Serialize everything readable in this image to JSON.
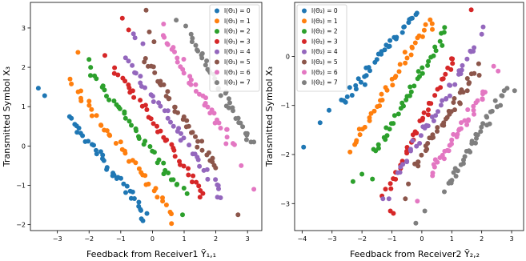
{
  "colors": [
    "#1f77b4",
    "#ff7f0e",
    "#2ca02c",
    "#d62728",
    "#9467bd",
    "#8c564b",
    "#e377c2",
    "#7f7f7f"
  ],
  "chart_data": [
    {
      "type": "scatter",
      "xlabel": "Feedback from Receiver1 Ỹ₁,₁",
      "ylabel": "Transmitted Symbol X₃",
      "xlim": [
        -3.85,
        3.45
      ],
      "ylim": [
        -2.15,
        3.65
      ],
      "xticks": [
        -3,
        -2,
        -1,
        0,
        1,
        2,
        3
      ],
      "yticks": [
        -2,
        -1,
        0,
        1,
        2,
        3
      ],
      "legend_position": "top-right",
      "legend": [
        "l(Θ₁) = 0",
        "l(Θ₁) = 1",
        "l(Θ₁) = 2",
        "l(Θ₁) = 3",
        "l(Θ₁) = 4",
        "l(Θ₁) = 5",
        "l(Θ₁) = 6",
        "l(Θ₁) = 7"
      ],
      "series": [
        {
          "name": "l(Θ₁) = 0",
          "band_start": [
            -2.6,
            0.7
          ],
          "band_end": [
            -0.2,
            -1.7
          ],
          "extras": [
            [
              -3.6,
              1.47
            ],
            [
              -3.4,
              1.28
            ],
            [
              -0.35,
              -1.85
            ],
            [
              -0.3,
              -1.9
            ]
          ]
        },
        {
          "name": "l(Θ₁) = 1",
          "band_start": [
            -2.5,
            1.5
          ],
          "band_end": [
            0.6,
            -1.7
          ],
          "extras": [
            [
              -2.35,
              2.38
            ],
            [
              0.6,
              -1.97
            ],
            [
              -2.6,
              1.7
            ]
          ]
        },
        {
          "name": "l(Θ₁) = 2",
          "band_start": [
            -1.9,
            1.8
          ],
          "band_end": [
            1.0,
            -1.2
          ],
          "extras": [
            [
              -2.0,
              2.2
            ],
            [
              0.95,
              -1.75
            ],
            [
              -1.95,
              2.0
            ]
          ]
        },
        {
          "name": "l(Θ₁) = 3",
          "band_start": [
            -1.2,
            2.0
          ],
          "band_end": [
            1.6,
            -1.2
          ],
          "extras": [
            [
              -0.95,
              3.25
            ],
            [
              -0.75,
              2.95
            ],
            [
              -1.5,
              2.3
            ],
            [
              1.5,
              -1.3
            ]
          ]
        },
        {
          "name": "l(Θ₁) = 4",
          "band_start": [
            -0.8,
            2.2
          ],
          "band_end": [
            2.2,
            -1.2
          ],
          "extras": [
            [
              -0.6,
              2.85
            ],
            [
              -0.55,
              2.75
            ],
            [
              -0.3,
              2.6
            ],
            [
              2.05,
              -1.3
            ]
          ]
        },
        {
          "name": "l(Θ₁) = 5",
          "band_start": [
            -0.25,
            2.2
          ],
          "band_end": [
            2.0,
            -0.6
          ],
          "extras": [
            [
              -0.2,
              3.45
            ],
            [
              -0.1,
              2.9
            ],
            [
              0.05,
              2.65
            ],
            [
              2.7,
              -1.75
            ]
          ]
        },
        {
          "name": "l(Θ₁) = 6",
          "band_start": [
            0.35,
            2.8
          ],
          "band_end": [
            2.55,
            0.0
          ],
          "extras": [
            [
              0.35,
              3.1
            ],
            [
              2.8,
              -0.5
            ],
            [
              3.2,
              -1.1
            ]
          ]
        },
        {
          "name": "l(Θ₁) = 7",
          "band_start": [
            1.2,
            2.8
          ],
          "band_end": [
            3.1,
            0.1
          ],
          "extras": [
            [
              0.75,
              3.2
            ],
            [
              1.05,
              3.05
            ],
            [
              3.2,
              0.1
            ]
          ]
        }
      ]
    },
    {
      "type": "scatter",
      "xlabel": "Feedback from Receiver2 Ỹ₂,₂",
      "ylabel": "Transmitted Symbol X₃",
      "xlim": [
        -4.25,
        3.4
      ],
      "ylim": [
        -3.55,
        1.1
      ],
      "xticks": [
        -4,
        -3,
        -2,
        -1,
        0,
        1,
        2,
        3
      ],
      "yticks": [
        -3,
        -2,
        -1,
        0
      ],
      "legend_position": "top-left",
      "legend": [
        "l(Θ₂) = 0",
        "l(Θ₂) = 1",
        "l(Θ₂) = 2",
        "l(Θ₂) = 3",
        "l(Θ₂) = 4",
        "l(Θ₂) = 5",
        "l(Θ₂) = 6",
        "l(Θ₂) = 7"
      ],
      "series": [
        {
          "name": "l(Θ₂) = 0",
          "band_start": [
            -2.7,
            -0.95
          ],
          "band_end": [
            -0.15,
            0.9
          ],
          "extras": [
            [
              -3.95,
              -1.85
            ],
            [
              -3.4,
              -1.35
            ],
            [
              -3.1,
              -1.1
            ]
          ]
        },
        {
          "name": "l(Θ₂) = 1",
          "band_start": [
            -2.3,
            -1.8
          ],
          "band_end": [
            0.3,
            0.75
          ],
          "extras": [
            [
              -2.4,
              -1.95
            ],
            [
              0.35,
              0.55
            ]
          ]
        },
        {
          "name": "l(Θ₂) = 2",
          "band_start": [
            -1.6,
            -2.0
          ],
          "band_end": [
            0.8,
            0.5
          ],
          "extras": [
            [
              -2.3,
              -2.55
            ],
            [
              -2.0,
              -2.4
            ],
            [
              -1.65,
              -2.5
            ]
          ]
        },
        {
          "name": "l(Θ₂) = 3",
          "band_start": [
            -1.2,
            -2.8
          ],
          "band_end": [
            1.1,
            0.0
          ],
          "extras": [
            [
              -1.05,
              -3.15
            ],
            [
              -0.95,
              -3.2
            ],
            [
              1.65,
              0.95
            ]
          ]
        },
        {
          "name": "l(Θ₂) = 4",
          "band_start": [
            -0.8,
            -2.4
          ],
          "band_end": [
            1.8,
            0.2
          ],
          "extras": [
            [
              -1.3,
              -2.9
            ],
            [
              -1.1,
              -2.9
            ],
            [
              2.05,
              0.6
            ],
            [
              2.0,
              0.45
            ]
          ]
        },
        {
          "name": "l(Θ₂) = 5",
          "band_start": [
            -0.2,
            -2.2
          ],
          "band_end": [
            1.8,
            -0.3
          ],
          "extras": [
            [
              -0.45,
              -2.6
            ],
            [
              -0.55,
              -2.9
            ],
            [
              1.9,
              -0.15
            ]
          ]
        },
        {
          "name": "l(Θ₂) = 6",
          "band_start": [
            0.3,
            -2.4
          ],
          "band_end": [
            2.1,
            -0.7
          ],
          "extras": [
            [
              -0.15,
              -2.95
            ],
            [
              2.4,
              -0.2
            ],
            [
              2.55,
              -0.3
            ]
          ]
        },
        {
          "name": "l(Θ₂) = 7",
          "band_start": [
            0.8,
            -2.7
          ],
          "band_end": [
            2.75,
            -0.75
          ],
          "extras": [
            [
              -0.2,
              -3.4
            ],
            [
              0.1,
              -3.15
            ],
            [
              3.1,
              -0.7
            ],
            [
              2.85,
              -0.65
            ]
          ]
        }
      ]
    }
  ]
}
